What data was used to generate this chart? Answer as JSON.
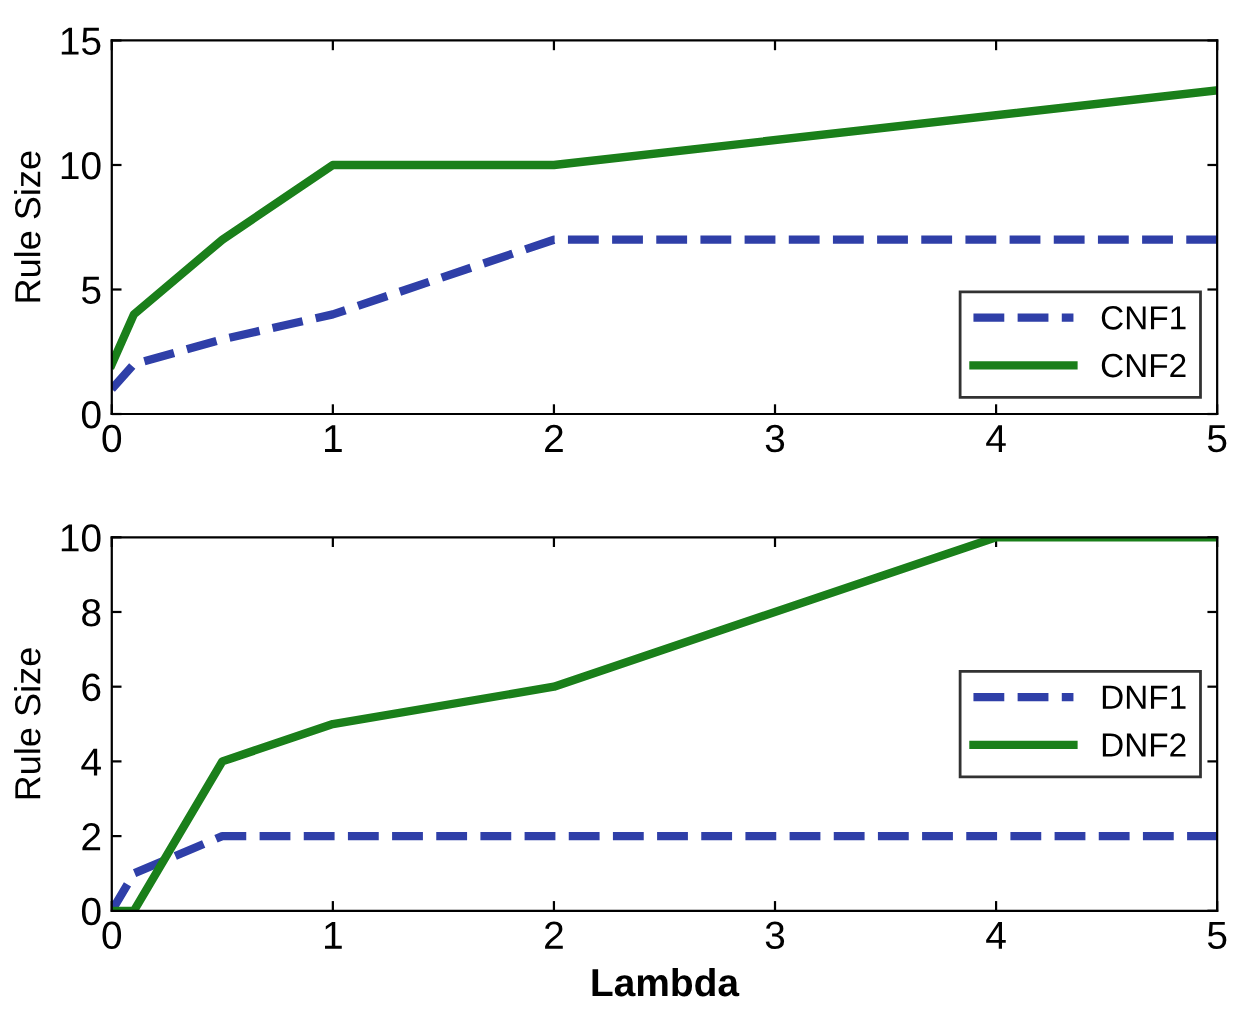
{
  "chart_data": [
    {
      "type": "line",
      "ylabel": "Rule Size",
      "xlim": [
        0,
        5
      ],
      "ylim": [
        0,
        15
      ],
      "xticks": [
        0,
        1,
        2,
        3,
        4,
        5
      ],
      "yticks": [
        0,
        5,
        10,
        15
      ],
      "grid": false,
      "legend": "lower right",
      "marker": "none",
      "series": [
        {
          "name": "CNF1",
          "color": "#2f3fa8",
          "line_style": "dashed",
          "x": [
            0,
            0.1,
            0.5,
            1,
            2,
            5
          ],
          "values": [
            1,
            2,
            3,
            4,
            7,
            7
          ]
        },
        {
          "name": "CNF2",
          "color": "#1a7f1a",
          "line_style": "solid",
          "x": [
            0,
            0.1,
            0.5,
            1,
            2,
            5
          ],
          "values": [
            2,
            4,
            7,
            10,
            10,
            13
          ]
        }
      ]
    },
    {
      "type": "line",
      "xlabel": "Lambda",
      "ylabel": "Rule Size",
      "xlim": [
        0,
        5
      ],
      "ylim": [
        0,
        10
      ],
      "xticks": [
        0,
        1,
        2,
        3,
        4,
        5
      ],
      "yticks": [
        0,
        2,
        4,
        6,
        8,
        10
      ],
      "grid": false,
      "legend": "right",
      "marker": "none",
      "series": [
        {
          "name": "DNF1",
          "color": "#2f3fa8",
          "line_style": "dashed",
          "x": [
            0,
            0.1,
            0.5,
            1,
            2,
            4,
            5
          ],
          "values": [
            0,
            1,
            2,
            2,
            2,
            2,
            2
          ]
        },
        {
          "name": "DNF2",
          "color": "#1a7f1a",
          "line_style": "solid",
          "x": [
            0,
            0.1,
            0.5,
            1,
            2,
            4,
            5
          ],
          "values": [
            0,
            0,
            4,
            5,
            6,
            10,
            10
          ]
        }
      ]
    }
  ]
}
